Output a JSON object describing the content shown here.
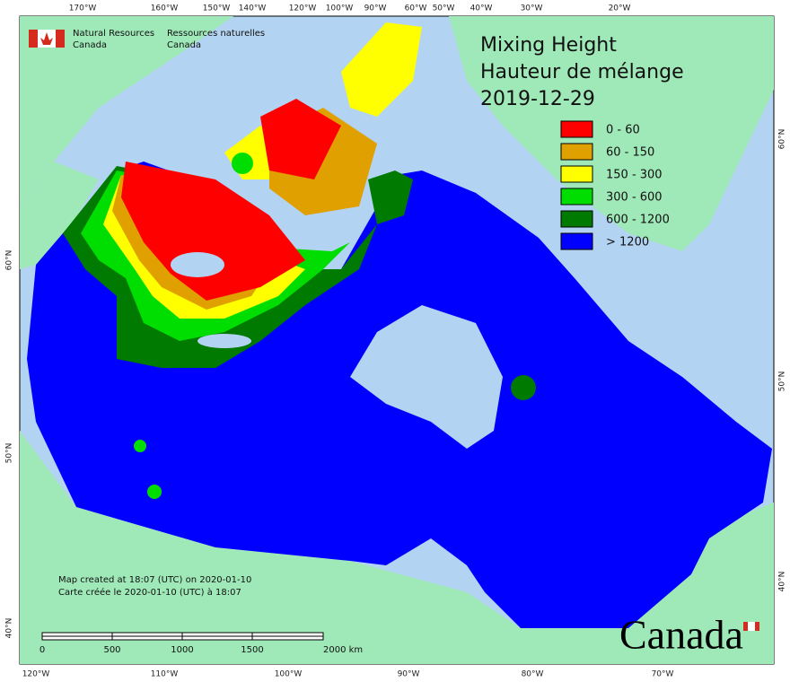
{
  "header": {
    "agency_en": [
      "Natural Resources",
      "Canada"
    ],
    "agency_fr": [
      "Ressources naturelles",
      "Canada"
    ]
  },
  "title": [
    "Mixing Height",
    "Hauteur de mélange",
    "2019-12-29"
  ],
  "legend": [
    {
      "label": "0 - 60",
      "color": "#ff0000"
    },
    {
      "label": "60 - 150",
      "color": "#e0a000"
    },
    {
      "label": "150 - 300",
      "color": "#ffff00"
    },
    {
      "label": "300 - 600",
      "color": "#00dd00"
    },
    {
      "label": "600 - 1200",
      "color": "#007a00"
    },
    {
      "label": "> 1200",
      "color": "#0000ff"
    }
  ],
  "graticule": {
    "top": [
      "170°W",
      "160°W",
      "150°W",
      "140°W",
      "120°W",
      "100°W",
      "90°W",
      "60°W",
      "50°W",
      "40°W",
      "30°W",
      "20°W"
    ],
    "bottom": [
      "120°W",
      "110°W",
      "100°W",
      "90°W",
      "80°W",
      "70°W"
    ],
    "left": [
      "60°N",
      "50°N",
      "40°N"
    ],
    "right": [
      "60°N",
      "50°N",
      "40°N"
    ]
  },
  "notes": [
    "Map created at 18:07 (UTC) on 2020-01-10",
    "Carte créée le 2020-01-10 (UTC) à 18:07"
  ],
  "scale": [
    "0",
    "500",
    "1000",
    "1500",
    "2000  km"
  ],
  "wordmark": "Canada"
}
